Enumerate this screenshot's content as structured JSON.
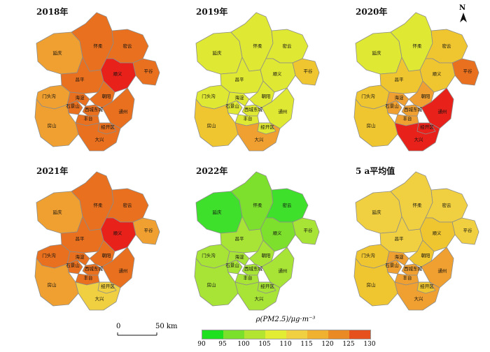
{
  "panels": [
    {
      "title": "2018年",
      "colors": {
        "yanqing": "#f0a030",
        "huairou": "#e8701e",
        "miyun": "#e8701e",
        "pinggu": "#e8701e",
        "changping": "#e8701e",
        "shunyi": "#e8221a",
        "mentougou": "#f0a030",
        "shijingshan": "#e8701e",
        "haidian": "#e8701e",
        "xicheng": "#e8701e",
        "chaoyang": "#e8701e",
        "fengtai": "#e8701e",
        "tongzhou": "#e8701e",
        "fangshan": "#f0a030",
        "daxing": "#e8701e",
        "jingkai": "#e8701e"
      }
    },
    {
      "title": "2019年",
      "colors": {
        "yanqing": "#dfe833",
        "huairou": "#dfe833",
        "miyun": "#dfe833",
        "pinggu": "#f0c630",
        "changping": "#dfe833",
        "shunyi": "#dfe833",
        "mentougou": "#dfe833",
        "shijingshan": "#dfe833",
        "haidian": "#dfe833",
        "xicheng": "#dfe833",
        "chaoyang": "#dfe833",
        "fengtai": "#dfe833",
        "tongzhou": "#dfe833",
        "fangshan": "#f0c630",
        "daxing": "#f0a030",
        "jingkai": "#dfe833"
      }
    },
    {
      "title": "2020年",
      "colors": {
        "yanqing": "#dfe833",
        "huairou": "#dfe833",
        "miyun": "#f0c630",
        "pinggu": "#e8701e",
        "changping": "#f0c630",
        "shunyi": "#f0c630",
        "mentougou": "#f0c630",
        "shijingshan": "#f0a030",
        "haidian": "#f0a030",
        "xicheng": "#f0a030",
        "chaoyang": "#f0a030",
        "fengtai": "#f0a030",
        "tongzhou": "#e8221a",
        "fangshan": "#f0c630",
        "daxing": "#e8221a",
        "jingkai": "#e8221a"
      }
    },
    {
      "title": "2021年",
      "colors": {
        "yanqing": "#f0a030",
        "huairou": "#e8701e",
        "miyun": "#e8701e",
        "pinggu": "#f0a030",
        "changping": "#e8701e",
        "shunyi": "#e8221a",
        "mentougou": "#e8701e",
        "shijingshan": "#e8701e",
        "haidian": "#e8701e",
        "xicheng": "#e8701e",
        "chaoyang": "#e8701e",
        "fengtai": "#e8701e",
        "tongzhou": "#e8701e",
        "fangshan": "#f0a030",
        "daxing": "#f0d040",
        "jingkai": "#f0d040"
      }
    },
    {
      "title": "2022年",
      "colors": {
        "yanqing": "#3fe02c",
        "huairou": "#7de02c",
        "miyun": "#3fe02c",
        "pinggu": "#a8e436",
        "changping": "#a8e436",
        "shunyi": "#7de02c",
        "mentougou": "#a8e436",
        "shijingshan": "#a8e436",
        "haidian": "#a8e436",
        "xicheng": "#a8e436",
        "chaoyang": "#a8e436",
        "fengtai": "#a8e436",
        "tongzhou": "#a8e436",
        "fangshan": "#a8e436",
        "daxing": "#a8e436",
        "jingkai": "#a8e436"
      }
    },
    {
      "title": "5 a平均值",
      "colors": {
        "yanqing": "#f0d040",
        "huairou": "#f0d040",
        "miyun": "#f0d040",
        "pinggu": "#f0d040",
        "changping": "#f0d040",
        "shunyi": "#f0c630",
        "mentougou": "#f0c630",
        "shijingshan": "#f0a030",
        "haidian": "#f0a030",
        "xicheng": "#f0a030",
        "chaoyang": "#f0c630",
        "fengtai": "#f0a030",
        "tongzhou": "#f0a030",
        "fangshan": "#f0c630",
        "daxing": "#f0a030",
        "jingkai": "#f0c630"
      }
    }
  ],
  "district_labels": {
    "yanqing": "延庆",
    "huairou": "怀柔",
    "miyun": "密云",
    "pinggu": "平谷",
    "changping": "昌平",
    "shunyi": "顺义",
    "mentougou": "门头沟",
    "shijingshan": "石景山",
    "haidian": "海淀",
    "xicheng": "西城东城",
    "chaoyang": "朝阳",
    "fengtai": "丰台",
    "tongzhou": "通州",
    "fangshan": "房山",
    "daxing": "大兴",
    "jingkai": "经开区"
  },
  "north_label": "N",
  "scale": {
    "start": "0",
    "end": "50 km"
  },
  "legend": {
    "title": "ρ(PM2.5)/μg·m⁻³",
    "ticks": [
      "90",
      "95",
      "100",
      "105",
      "110",
      "115",
      "120",
      "125",
      "130"
    ],
    "colors": [
      "#1fe01f",
      "#7ae02c",
      "#b4e432",
      "#e2ec33",
      "#f0d040",
      "#f0b030",
      "#ea8a24",
      "#e6501c"
    ]
  }
}
